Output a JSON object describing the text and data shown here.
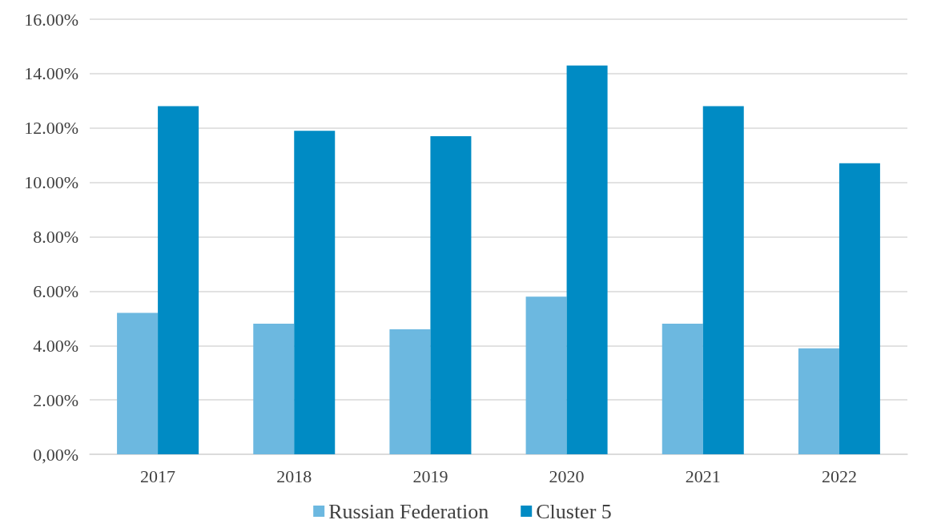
{
  "chart_data": {
    "type": "bar",
    "categories": [
      "2017",
      "2018",
      "2019",
      "2020",
      "2021",
      "2022"
    ],
    "series": [
      {
        "name": "Russian Federation",
        "color": "#6cb8e0",
        "values": [
          5.2,
          4.8,
          4.6,
          5.8,
          4.8,
          3.9
        ]
      },
      {
        "name": "Cluster 5",
        "color": "#008bc4",
        "values": [
          12.8,
          11.9,
          11.7,
          14.3,
          12.8,
          10.7
        ]
      }
    ],
    "ylim": [
      0,
      16
    ],
    "yticks": [
      {
        "value": 0,
        "label": "0,00%"
      },
      {
        "value": 2,
        "label": "2.00%"
      },
      {
        "value": 4,
        "label": "4.00%"
      },
      {
        "value": 6,
        "label": "6.00%"
      },
      {
        "value": 8,
        "label": "8.00%"
      },
      {
        "value": 10,
        "label": "10.00%"
      },
      {
        "value": 12,
        "label": "12.00%"
      },
      {
        "value": 14,
        "label": "14.00%"
      },
      {
        "value": 16,
        "label": "16.00%"
      }
    ],
    "grid": "y",
    "legend": "bottom"
  }
}
